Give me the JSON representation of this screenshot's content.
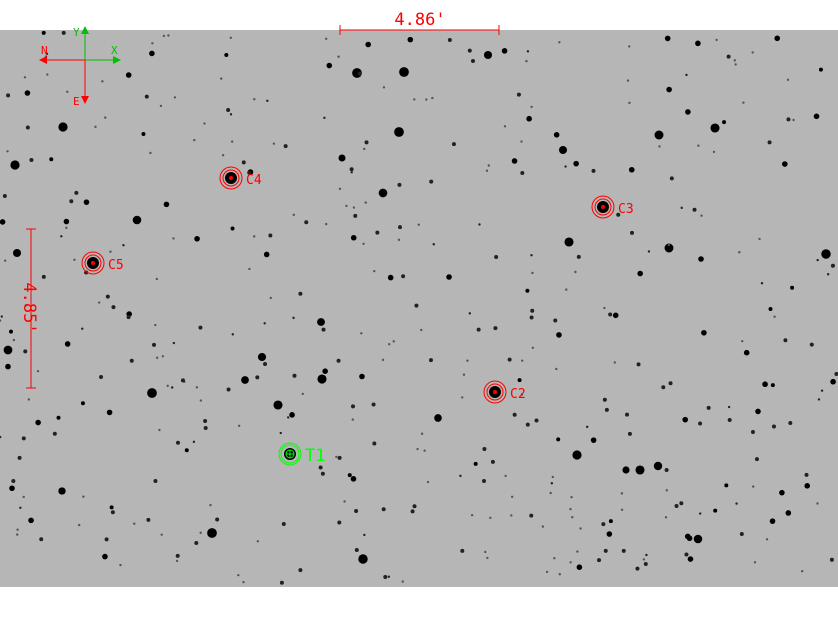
{
  "colors": {
    "comparison": "#ff0000",
    "target": "#00ff00",
    "axis_x_y": "#00c000",
    "axis_n_e": "#ff0000",
    "background": "#b4b4b4"
  },
  "scale_bars": {
    "horizontal": "4.86'",
    "vertical": "4.85'"
  },
  "compass": {
    "y": "Y",
    "x": "X",
    "n": "N",
    "e": "E"
  },
  "markers": {
    "target": {
      "label": "T1"
    },
    "comparisons": [
      {
        "label": "C2"
      },
      {
        "label": "C3"
      },
      {
        "label": "C4"
      },
      {
        "label": "C5"
      }
    ]
  }
}
